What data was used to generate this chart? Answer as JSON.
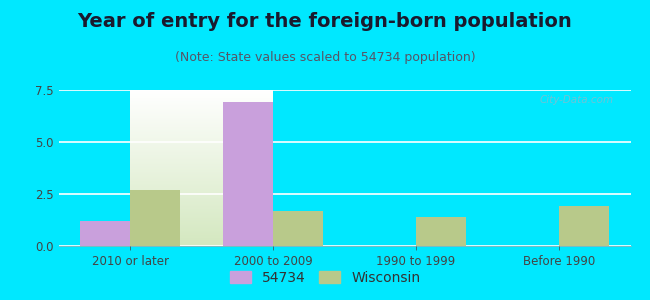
{
  "title": "Year of entry for the foreign-born population",
  "subtitle": "(Note: State values scaled to 54734 population)",
  "categories": [
    "2010 or later",
    "2000 to 2009",
    "1990 to 1999",
    "Before 1990"
  ],
  "values_54734": [
    1.2,
    6.9,
    0.0,
    0.0
  ],
  "values_wisconsin": [
    2.7,
    1.7,
    1.4,
    1.9
  ],
  "color_54734": "#c9a0dc",
  "color_wisconsin": "#b8c98a",
  "background_outer": "#00e8ff",
  "ylim_max": 7.5,
  "yticks": [
    0,
    2.5,
    5,
    7.5
  ],
  "bar_width": 0.35,
  "legend_label_54734": "54734",
  "legend_label_wisconsin": "Wisconsin",
  "title_fontsize": 14,
  "subtitle_fontsize": 9,
  "tick_fontsize": 8.5,
  "legend_fontsize": 10
}
